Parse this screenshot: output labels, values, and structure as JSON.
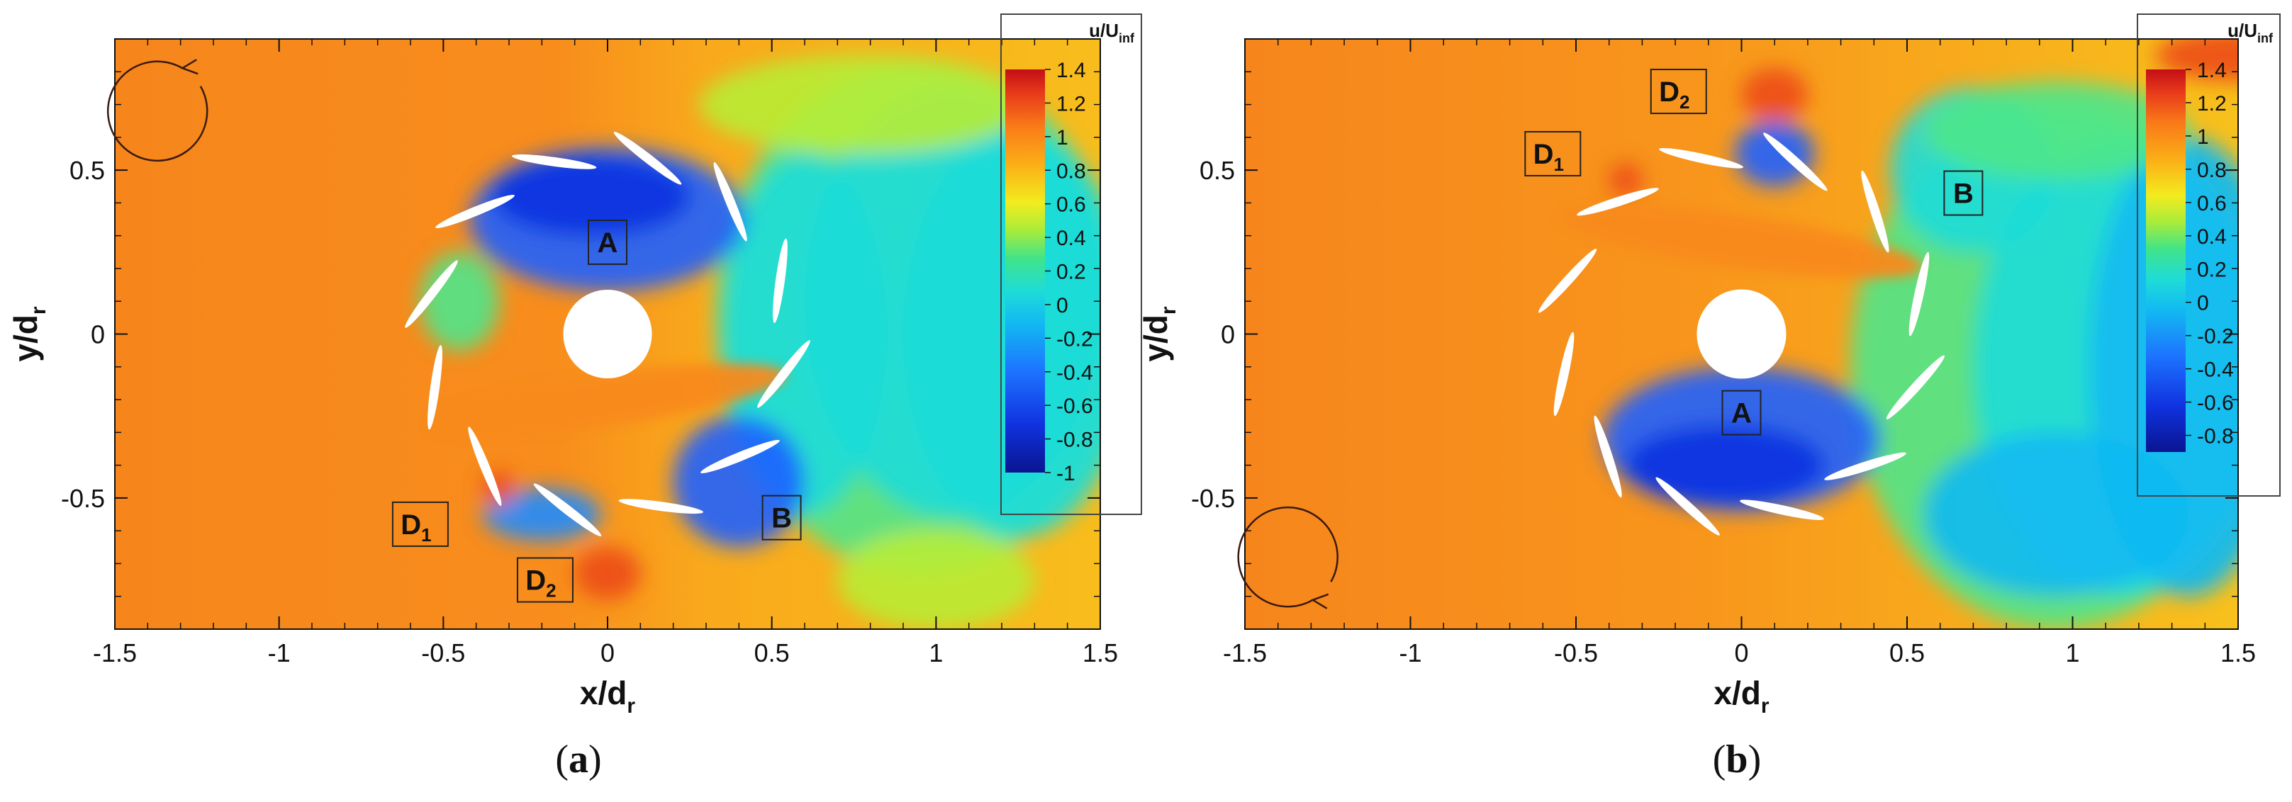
{
  "chart_data": [
    {
      "type": "heatmap",
      "panel_label": "a",
      "xlabel": "x/d",
      "xlabel_sub": "r",
      "ylabel": "y/d",
      "ylabel_sub": "r",
      "xlim": [
        -1.5,
        1.5
      ],
      "ylim": [
        -0.9,
        0.9
      ],
      "x_ticks": [
        "-1.5",
        "-1",
        "-0.5",
        "0",
        "0.5",
        "1",
        "1.5"
      ],
      "y_ticks": [
        "-0.5",
        "0",
        "0.5"
      ],
      "colorbar": {
        "title": "u/U",
        "title_sub": "inf",
        "ticks": [
          "1.4",
          "1.2",
          "1",
          "0.8",
          "0.6",
          "0.4",
          "0.2",
          "0",
          "-0.2",
          "-0.4",
          "-0.6",
          "-0.8",
          "-1"
        ],
        "range": [
          -1.0,
          1.4
        ]
      },
      "rotation": "counterclockwise",
      "region_labels": [
        {
          "text": "A",
          "sub": "",
          "x": 0.0,
          "y": 0.28
        },
        {
          "text": "B",
          "sub": "",
          "x": 0.53,
          "y": -0.56
        },
        {
          "text": "D",
          "sub": "1",
          "x": -0.57,
          "y": -0.58
        },
        {
          "text": "D",
          "sub": "2",
          "x": -0.19,
          "y": -0.75
        }
      ]
    },
    {
      "type": "heatmap",
      "panel_label": "b",
      "xlabel": "x/d",
      "xlabel_sub": "r",
      "ylabel": "y/d",
      "ylabel_sub": "r",
      "xlim": [
        -1.5,
        1.5
      ],
      "ylim": [
        -0.9,
        0.9
      ],
      "x_ticks": [
        "-1.5",
        "-1",
        "-0.5",
        "0",
        "0.5",
        "1",
        "1.5"
      ],
      "y_ticks": [
        "-0.5",
        "0",
        "0.5"
      ],
      "colorbar": {
        "title": "u/U",
        "title_sub": "inf",
        "ticks": [
          "1.4",
          "1.2",
          "1",
          "0.8",
          "0.6",
          "0.4",
          "0.2",
          "0",
          "-0.2",
          "-0.4",
          "-0.6",
          "-0.8"
        ],
        "range": [
          -0.9,
          1.4
        ]
      },
      "rotation": "clockwise",
      "region_labels": [
        {
          "text": "A",
          "sub": "",
          "x": 0.0,
          "y": -0.24
        },
        {
          "text": "B",
          "sub": "",
          "x": 0.67,
          "y": 0.43
        },
        {
          "text": "D",
          "sub": "1",
          "x": -0.57,
          "y": 0.55
        },
        {
          "text": "D",
          "sub": "2",
          "x": -0.19,
          "y": 0.74
        }
      ]
    }
  ]
}
